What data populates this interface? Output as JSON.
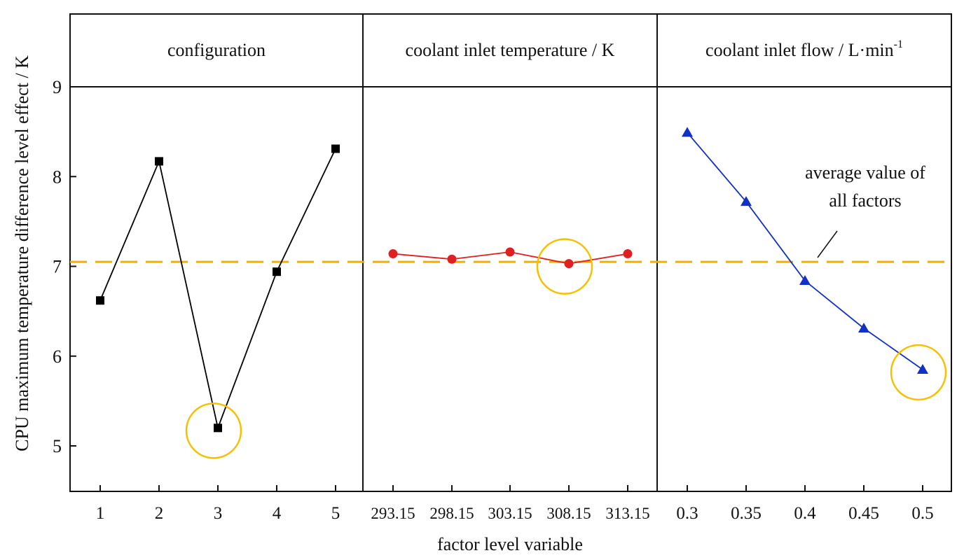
{
  "chart_data": {
    "type": "line",
    "ylabel": "CPU maximum temperature difference level effect / K",
    "xlabel": "factor level variable",
    "ylim": [
      4.5,
      9.0
    ],
    "yticks": [
      5,
      6,
      7,
      8,
      9
    ],
    "grid": false,
    "average_value": 7.05,
    "average_line_color": "#f0b000",
    "highlight_circle_color": "#f5c000",
    "annotation": {
      "text_line1": "average value of",
      "text_line2": "all factors",
      "panel": 2
    },
    "panels": [
      {
        "title": "configuration",
        "title_sup": "",
        "categories": [
          "1",
          "2",
          "3",
          "4",
          "5"
        ],
        "values": [
          6.62,
          8.17,
          5.2,
          6.94,
          8.31
        ],
        "color": "#000000",
        "marker": "square",
        "highlight_index": 2
      },
      {
        "title": "coolant inlet temperature / K",
        "title_sup": "",
        "categories": [
          "293.15",
          "298.15",
          "303.15",
          "308.15",
          "313.15"
        ],
        "values": [
          7.14,
          7.08,
          7.16,
          7.03,
          7.14
        ],
        "color": "#e02020",
        "marker": "circle",
        "highlight_index": 3
      },
      {
        "title": "coolant inlet flow / L·min",
        "title_sup": "-1",
        "categories": [
          "0.3",
          "0.35",
          "0.4",
          "0.45",
          "0.5"
        ],
        "values": [
          8.49,
          7.72,
          6.84,
          6.31,
          5.85
        ],
        "color": "#1030c8",
        "marker": "triangle",
        "highlight_index": 4
      }
    ]
  }
}
